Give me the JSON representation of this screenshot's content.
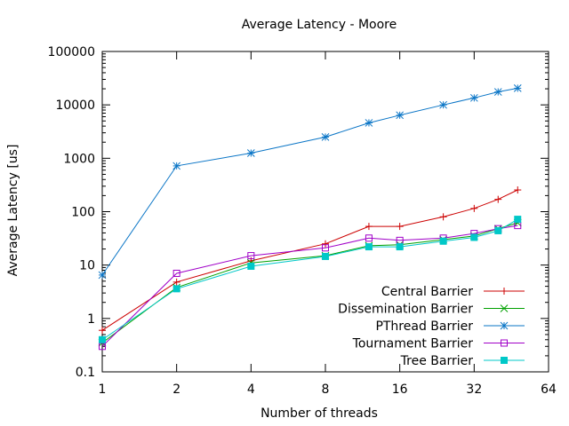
{
  "chart_data": {
    "type": "line",
    "title": "Average Latency - Moore",
    "xlabel": "Number of threads",
    "ylabel": "Average Latency [us]",
    "x_scale": "log2",
    "y_scale": "log10",
    "xlim": [
      1,
      64
    ],
    "ylim": [
      0.1,
      100000
    ],
    "x_ticks": [
      1,
      2,
      4,
      8,
      16,
      32,
      64
    ],
    "x_tick_labels": [
      "1",
      "2",
      "4",
      "8",
      "16",
      "32",
      "64"
    ],
    "y_ticks": [
      0.1,
      1,
      10,
      100,
      1000,
      10000,
      100000
    ],
    "y_tick_labels": [
      "0.1",
      "1",
      "10",
      "100",
      "1000",
      "10000",
      "100000"
    ],
    "grid": false,
    "legend_position": "bottom-right",
    "x": [
      1,
      2,
      4,
      8,
      12,
      16,
      24,
      32,
      40,
      48
    ],
    "series": [
      {
        "name": "Central Barrier",
        "color": "#cc0000",
        "marker": "plus",
        "values": [
          0.6,
          4.8,
          12,
          25,
          53,
          53,
          80,
          115,
          170,
          255
        ]
      },
      {
        "name": "Dissemination Barrier",
        "color": "#00a000",
        "marker": "cross",
        "values": [
          0.35,
          3.8,
          11,
          15,
          23,
          24,
          30,
          35,
          48,
          62
        ]
      },
      {
        "name": "PThread Barrier",
        "color": "#0a75c6",
        "marker": "star",
        "values": [
          6.5,
          720,
          1250,
          2500,
          4600,
          6400,
          10000,
          13500,
          17500,
          20500
        ]
      },
      {
        "name": "Tournament Barrier",
        "color": "#a000c8",
        "marker": "box",
        "values": [
          0.3,
          7,
          15,
          21,
          32,
          29,
          32,
          39,
          48,
          55
        ]
      },
      {
        "name": "Tree Barrier",
        "color": "#00c8c8",
        "marker": "filled-box",
        "values": [
          0.4,
          3.6,
          9.5,
          14.5,
          22,
          22,
          28,
          33,
          44,
          72
        ]
      }
    ]
  }
}
